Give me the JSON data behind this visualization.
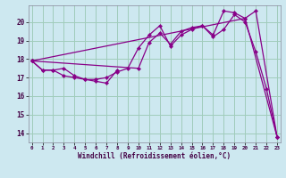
{
  "xlabel": "Windchill (Refroidissement éolien,°C)",
  "bg_color": "#cde8f0",
  "grid_color": "#a0ccbb",
  "line_color": "#880088",
  "series": [
    {
      "x": [
        0,
        1,
        2,
        3,
        4,
        5,
        6,
        7,
        8
      ],
      "y": [
        17.9,
        17.4,
        17.4,
        17.5,
        17.1,
        16.9,
        16.8,
        16.7,
        17.4
      ]
    },
    {
      "x": [
        0,
        1,
        2,
        3,
        4,
        5,
        6,
        7,
        8,
        9,
        10,
        11,
        12,
        13,
        14,
        15,
        16,
        17,
        18,
        19,
        20,
        21,
        22,
        23
      ],
      "y": [
        17.9,
        17.4,
        17.4,
        17.1,
        17.0,
        16.9,
        16.9,
        17.0,
        17.3,
        17.5,
        18.6,
        19.3,
        19.8,
        18.7,
        19.3,
        19.6,
        19.8,
        19.2,
        19.6,
        20.4,
        20.0,
        18.4,
        16.4,
        13.8
      ]
    },
    {
      "x": [
        0,
        10,
        11,
        12,
        13,
        14,
        15,
        16,
        17,
        18,
        19,
        20,
        21,
        23
      ],
      "y": [
        17.9,
        17.5,
        18.9,
        19.4,
        18.8,
        19.5,
        19.7,
        19.8,
        19.3,
        20.6,
        20.5,
        20.2,
        20.6,
        13.8
      ]
    },
    {
      "x": [
        0,
        20,
        23
      ],
      "y": [
        17.9,
        20.2,
        13.8
      ]
    }
  ],
  "xlim": [
    -0.3,
    23.3
  ],
  "ylim": [
    13.5,
    20.9
  ],
  "yticks": [
    14,
    15,
    16,
    17,
    18,
    19,
    20
  ],
  "xticks": [
    0,
    1,
    2,
    3,
    4,
    5,
    6,
    7,
    8,
    9,
    10,
    11,
    12,
    13,
    14,
    15,
    16,
    17,
    18,
    19,
    20,
    21,
    22,
    23
  ]
}
